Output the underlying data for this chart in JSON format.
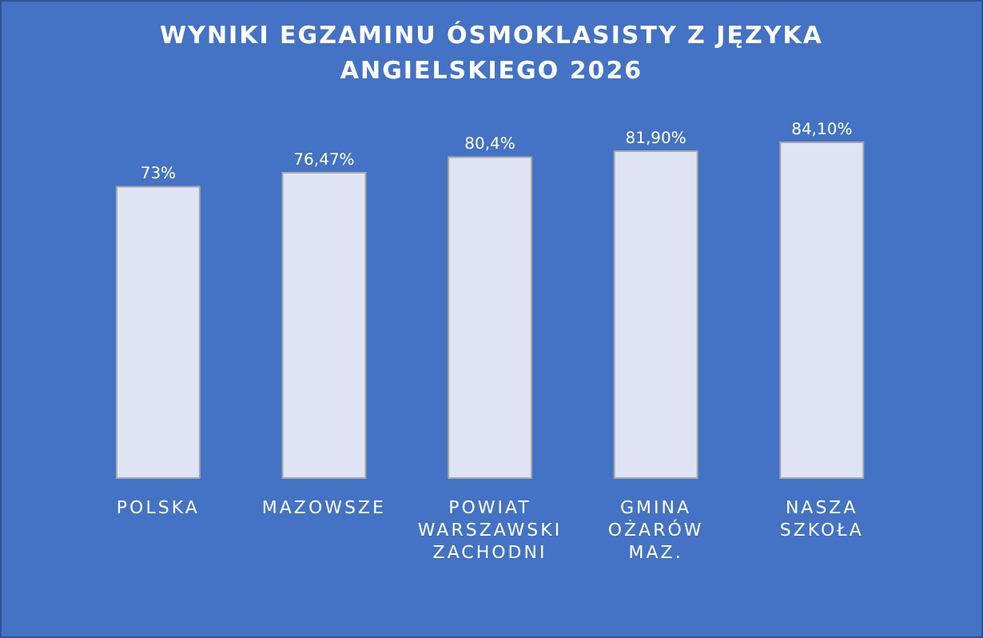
{
  "chart_data": {
    "type": "bar",
    "title": "WYNIKI EGZAMINU ÓSMOKLASISTY Z JĘZYKA ANGIELSKIEGO 2026",
    "categories": [
      "POLSKA",
      "MAZOWSZE",
      "POWIAT WARSZAWSKI ZACHODNI",
      "GMINA OŻARÓW MAZ.",
      "NASZA SZKOŁA"
    ],
    "values": [
      73,
      76.47,
      80.4,
      81.9,
      84.1
    ],
    "value_labels": [
      "73%",
      "76,47%",
      "80,4%",
      "81,90%",
      "84,10%"
    ],
    "color": "#dfe4f4",
    "grid": false,
    "legend": false
  }
}
